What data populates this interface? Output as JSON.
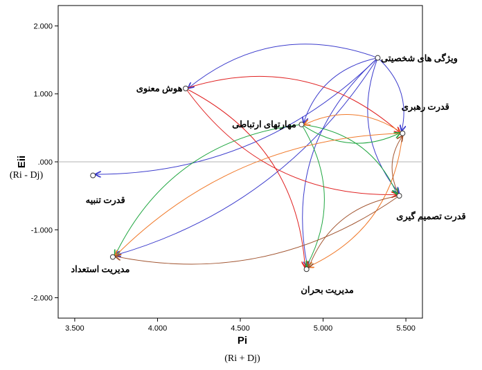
{
  "chart_data": {
    "type": "scatter",
    "xlabel": "Pi",
    "xlabel_sub": "(Ri + Dj)",
    "ylabel": "Eii",
    "ylabel_sub": "(Ri - Dj)",
    "xlim": [
      3.4,
      5.6
    ],
    "ylim": [
      -2.3,
      2.3
    ],
    "xticks": [
      3.5,
      4.0,
      4.5,
      5.0,
      5.5
    ],
    "xtick_labels": [
      "3.500",
      "4.000",
      "4.500",
      "5.000",
      "5.500"
    ],
    "yticks": [
      2.0,
      1.0,
      0.0,
      -1.0,
      -2.0
    ],
    "ytick_labels": [
      "2.000",
      "1.000",
      ".000",
      "-1.000",
      "-2.000"
    ],
    "reference_line_y": 0.0,
    "grid": false,
    "points": [
      {
        "id": "p1",
        "label": "ویژگی های شخصیتی",
        "x": 5.33,
        "y": 1.53
      },
      {
        "id": "p2",
        "label": "هوش معنوی",
        "x": 4.17,
        "y": 1.08
      },
      {
        "id": "p3",
        "label": "مهارتهای ارتباطی",
        "x": 4.87,
        "y": 0.55
      },
      {
        "id": "p4",
        "label": "قدرت رهبری",
        "x": 5.48,
        "y": 0.42
      },
      {
        "id": "p5",
        "label": "قدرت تنبیه",
        "x": 3.61,
        "y": -0.2
      },
      {
        "id": "p6",
        "label": "قدرت تصمیم گیری",
        "x": 5.46,
        "y": -0.5
      },
      {
        "id": "p7",
        "label": "مدیریت استعداد",
        "x": 3.73,
        "y": -1.4
      },
      {
        "id": "p8",
        "label": "مدیریت بحران",
        "x": 4.9,
        "y": -1.58
      }
    ],
    "relations": [
      {
        "from": "p1",
        "to": "p2",
        "color": "#3a3acc"
      },
      {
        "from": "p1",
        "to": "p5",
        "color": "#3a3acc"
      },
      {
        "from": "p1",
        "to": "p3",
        "color": "#3a3acc"
      },
      {
        "from": "p1",
        "to": "p4",
        "color": "#3a3acc"
      },
      {
        "from": "p1",
        "to": "p6",
        "color": "#3a3acc"
      },
      {
        "from": "p1",
        "to": "p7",
        "color": "#3a3acc"
      },
      {
        "from": "p1",
        "to": "p8",
        "color": "#3a3acc"
      },
      {
        "from": "p2",
        "to": "p4",
        "color": "#e02020"
      },
      {
        "from": "p2",
        "to": "p6",
        "color": "#e02020"
      },
      {
        "from": "p2",
        "to": "p8",
        "color": "#e02020"
      },
      {
        "from": "p3",
        "to": "p4",
        "color": "#1fa640"
      },
      {
        "from": "p3",
        "to": "p6",
        "color": "#1fa640"
      },
      {
        "from": "p3",
        "to": "p7",
        "color": "#1fa640"
      },
      {
        "from": "p3",
        "to": "p8",
        "color": "#1fa640"
      },
      {
        "from": "p4",
        "to": "p7",
        "color": "#f07828"
      },
      {
        "from": "p4",
        "to": "p8",
        "color": "#f07828"
      },
      {
        "from": "p4",
        "to": "p3",
        "color": "#f07828"
      },
      {
        "from": "p6",
        "to": "p7",
        "color": "#a0522d"
      },
      {
        "from": "p6",
        "to": "p8",
        "color": "#a0522d"
      },
      {
        "from": "p6",
        "to": "p4",
        "color": "#a0522d"
      }
    ]
  },
  "colors": {
    "background": "#ffffff",
    "frame": "#000000",
    "reference_line": "#b0b0b0",
    "point_marker": "#333333"
  }
}
